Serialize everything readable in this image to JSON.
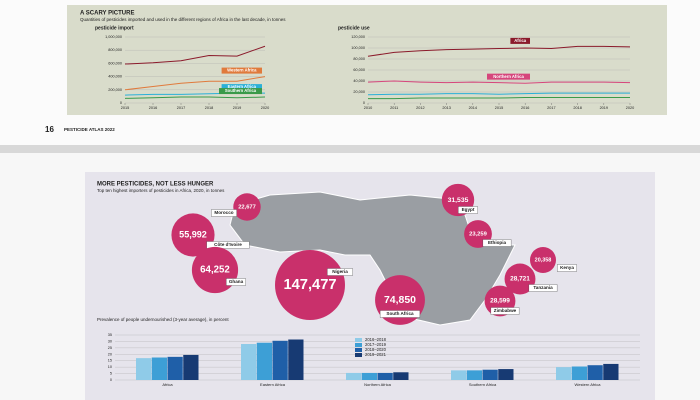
{
  "page": {
    "number": "16",
    "running_title": "PESTICIDE ATLAS 2022"
  },
  "top_panel": {
    "title": "A SCARY PICTURE",
    "subtitle": "Quantities of pesticides imported and used in the different regions of Africa in the last decade, in tonnes"
  },
  "chart_data": [
    {
      "type": "line",
      "title": "pesticide import",
      "x": [
        2015,
        2016,
        2017,
        2018,
        2019,
        2020
      ],
      "xlim": [
        2015,
        2020
      ],
      "xticks": [
        2015,
        2016,
        2017,
        2018,
        2019,
        2020
      ],
      "ylim": [
        0,
        1000000
      ],
      "yticks": [
        0,
        {
          "value": 200000,
          "label": "200,000"
        },
        {
          "value": 400000,
          "label": "400,000"
        },
        {
          "value": 600000,
          "label": "600,000"
        },
        {
          "value": 800000,
          "label": "800,000"
        },
        {
          "value": 1000000,
          "label": "1,000,000"
        }
      ],
      "grid": true,
      "series": [
        {
          "color": "#8b1a2b",
          "values": [
            590000,
            610000,
            640000,
            720000,
            710000,
            860000
          ]
        },
        {
          "name": "Western Africa",
          "color": "#e07a3c",
          "values": [
            200000,
            250000,
            300000,
            330000,
            330000,
            400000
          ]
        },
        {
          "name": "Eastern Africa",
          "color": "#2ab0d8",
          "values": [
            120000,
            130000,
            130000,
            140000,
            150000,
            150000
          ]
        },
        {
          "name": "Southern Africa",
          "color": "#3a9a4a",
          "values": [
            70000,
            80000,
            90000,
            90000,
            80000,
            90000
          ]
        }
      ]
    },
    {
      "type": "line",
      "title": "pesticide use",
      "x": [
        2010,
        2011,
        2012,
        2013,
        2014,
        2015,
        2016,
        2017,
        2018,
        2019,
        2020
      ],
      "xlim": [
        2010,
        2020
      ],
      "xticks": [
        2010,
        2011,
        2012,
        2013,
        2014,
        2015,
        2016,
        2017,
        2018,
        2019,
        2020
      ],
      "ylim": [
        0,
        120000
      ],
      "yticks": [
        0,
        {
          "value": 20000,
          "label": "20,000"
        },
        {
          "value": 40000,
          "label": "40,000"
        },
        {
          "value": 60000,
          "label": "60,000"
        },
        {
          "value": 80000,
          "label": "80,000"
        },
        {
          "value": 100000,
          "label": "100,000"
        },
        {
          "value": 120000,
          "label": "120,000"
        }
      ],
      "grid": true,
      "series": [
        {
          "name": "Africa",
          "color": "#8b1a2b",
          "values": [
            85000,
            92000,
            95000,
            97000,
            98000,
            99000,
            100000,
            99000,
            103000,
            103000,
            102000
          ]
        },
        {
          "name": "Northern Africa",
          "color": "#d6467c",
          "values": [
            38000,
            40000,
            38000,
            37000,
            38000,
            37000,
            36000,
            38000,
            38000,
            38000,
            37000
          ]
        },
        {
          "color": "#2ab0d8",
          "values": [
            15000,
            16000,
            16000,
            17000,
            17000,
            16000,
            17000,
            18000,
            18000,
            18000,
            18000
          ]
        },
        {
          "color": "#3a9a4a",
          "values": [
            8000,
            8000,
            9000,
            9000,
            9000,
            9000,
            10000,
            10000,
            10000,
            10000,
            10000
          ]
        }
      ]
    },
    {
      "type": "bar",
      "title": "Prevalence of people undernourished (3-year average), in percent",
      "categories": [
        "Africa",
        "Eastern Africa",
        "Northern Africa",
        "Southern Africa",
        "Western Africa"
      ],
      "ylim": [
        0,
        35
      ],
      "yticks": [
        0,
        5,
        10,
        15,
        20,
        25,
        30,
        35
      ],
      "grid": true,
      "series": [
        {
          "name": "2016–2018",
          "color": "#8fcbe8",
          "values": [
            17,
            28,
            5.5,
            7.5,
            10
          ]
        },
        {
          "name": "2017–2019",
          "color": "#3d9fd6",
          "values": [
            17.5,
            29,
            5.5,
            7.5,
            10.5
          ]
        },
        {
          "name": "2018–2020",
          "color": "#1f5fa8",
          "values": [
            18,
            30.5,
            5.5,
            8,
            11.5
          ]
        },
        {
          "name": "2019–2021",
          "color": "#173a73",
          "values": [
            19.5,
            31.5,
            6,
            8.5,
            12.5
          ]
        }
      ]
    }
  ],
  "map": {
    "title": "MORE PESTICIDES, NOT LESS HUNGER",
    "subtitle": "Top ten highest importers of pesticides in Africa, 2020, in tonnes",
    "countries": [
      {
        "name": "Morocco",
        "value": 22677,
        "value_label": "22,677"
      },
      {
        "name": "Côte d'Ivoire",
        "value": 55992,
        "value_label": "55,992"
      },
      {
        "name": "Ghana",
        "value": 64252,
        "value_label": "64,252"
      },
      {
        "name": "Nigeria",
        "value": 147477,
        "value_label": "147,477"
      },
      {
        "name": "South Africa",
        "value": 74850,
        "value_label": "74,850"
      },
      {
        "name": "Egypt",
        "value": 31535,
        "value_label": "31,535"
      },
      {
        "name": "Ethiopia",
        "value": 23259,
        "value_label": "23,259"
      },
      {
        "name": "Kenya",
        "value": 20358,
        "value_label": "20,358"
      },
      {
        "name": "Tanzania",
        "value": 28721,
        "value_label": "28,721"
      },
      {
        "name": "Zimbabwe",
        "value": 28599,
        "value_label": "28,599"
      }
    ]
  }
}
